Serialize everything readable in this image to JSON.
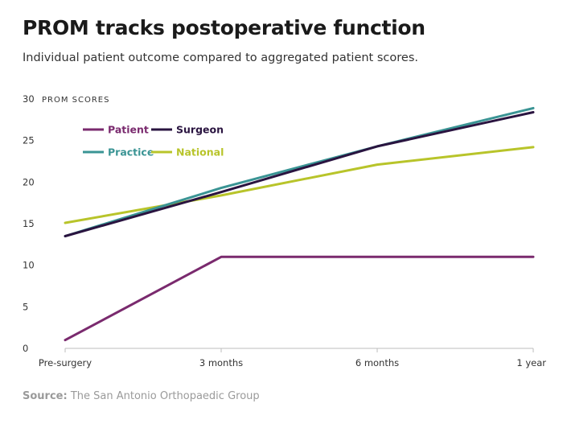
{
  "header": {
    "title": "PROM tracks postoperative function",
    "subtitle": "Individual patient outcome compared to aggregated patient scores."
  },
  "footer": {
    "source_label": "Source:",
    "source_text": "The San Antonio Orthopaedic Group"
  },
  "chart_data": {
    "type": "line",
    "title": "PROM tracks postoperative function",
    "subtitle": "Individual patient outcome compared to aggregated patient scores.",
    "ylabel": "PROM SCORES",
    "xlabel": "",
    "categories": [
      "Pre-surgery",
      "3 months",
      "6 months",
      "1 year"
    ],
    "x": [
      0,
      3,
      6,
      9
    ],
    "ylim": [
      0,
      30
    ],
    "yticks": [
      0,
      5,
      10,
      15,
      20,
      25,
      30
    ],
    "grid": false,
    "legend_position": "top-left",
    "series": [
      {
        "name": "Patient",
        "color": "#7a2a6e",
        "values": [
          1,
          11,
          11,
          11
        ]
      },
      {
        "name": "Surgeon",
        "color": "#2a1440",
        "values": [
          13.5,
          18.8,
          24.3,
          28.4
        ]
      },
      {
        "name": "Practice",
        "color": "#3a9494",
        "values": [
          13.5,
          19.3,
          24.3,
          28.9
        ]
      },
      {
        "name": "National",
        "color": "#b8c42a",
        "values": [
          15.1,
          18.4,
          22.1,
          24.2
        ]
      }
    ]
  }
}
